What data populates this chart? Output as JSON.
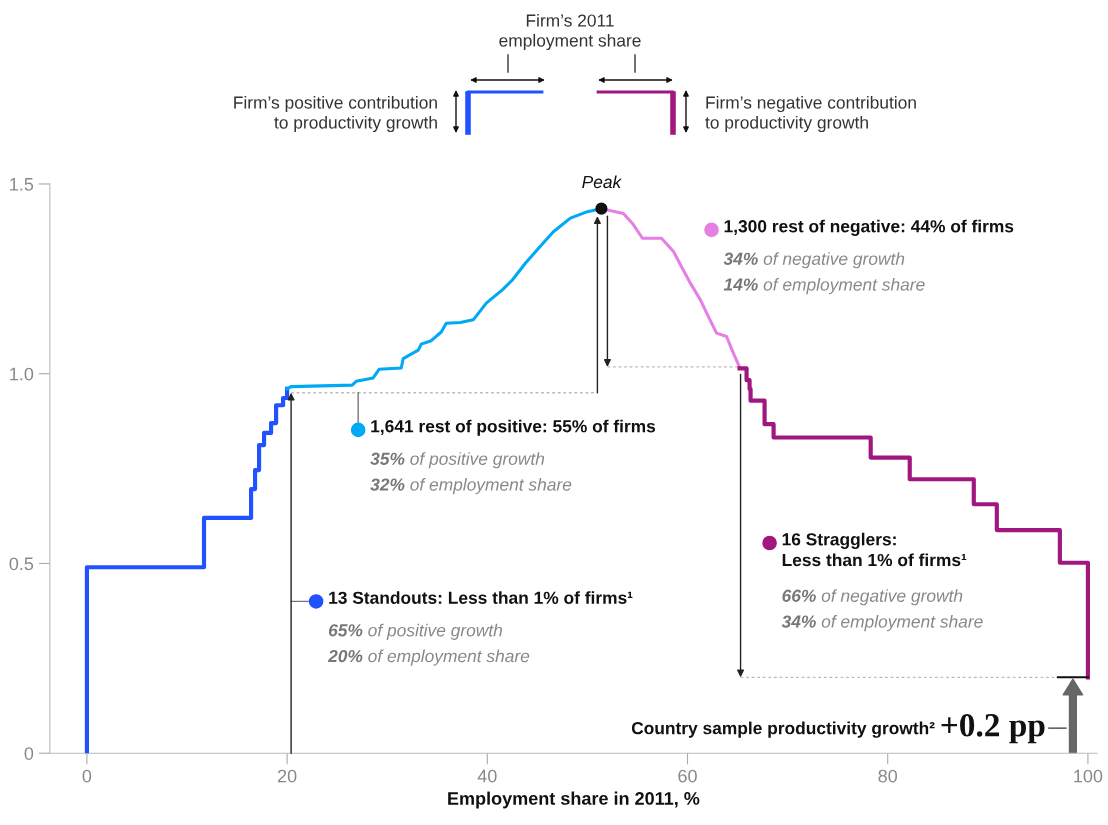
{
  "chart_data": {
    "type": "step",
    "xlabel": "Employment share in 2011, %",
    "series": [
      {
        "name": "13 Standouts: Less than 1% of firms¹",
        "color": "#2251ff",
        "x": [
          0,
          0,
          11.7,
          16.4,
          16.8,
          17.2,
          17.7,
          18.4,
          18.9,
          19.6,
          20.0
        ],
        "values": [
          0,
          0.49,
          0.62,
          0.696,
          0.746,
          0.812,
          0.844,
          0.87,
          0.917,
          0.936,
          0.96
        ]
      },
      {
        "name": "1,641 rest of positive: 55% of firms",
        "type": "line",
        "color": "#00a9f4",
        "x": [
          20.0,
          20.4,
          26.5,
          26.9,
          28.6,
          29.2,
          31.4,
          31.6,
          33.1,
          33.4,
          34.4,
          35.4,
          35.9,
          37.3,
          38.6,
          39.9,
          41.5,
          42.5,
          43.8,
          45.1,
          46.6,
          48.3,
          50.0,
          51.4
        ],
        "values": [
          0.96,
          0.966,
          0.97,
          0.98,
          0.989,
          1.012,
          1.015,
          1.04,
          1.062,
          1.078,
          1.087,
          1.11,
          1.133,
          1.135,
          1.142,
          1.186,
          1.221,
          1.247,
          1.291,
          1.33,
          1.374,
          1.41,
          1.427,
          1.435
        ]
      },
      {
        "name": "1,300 rest of negative: 44% of firms",
        "type": "line",
        "color": "#e67fe3",
        "x": [
          51.4,
          53.6,
          54.5,
          55.5,
          57.4,
          58.6,
          59.4,
          60.3,
          61.3,
          62.1,
          62.9,
          63.9,
          64.6,
          65.2
        ],
        "values": [
          1.435,
          1.422,
          1.396,
          1.357,
          1.357,
          1.322,
          1.282,
          1.238,
          1.194,
          1.15,
          1.107,
          1.098,
          1.053,
          1.018
        ]
      },
      {
        "name": "16 Stragglers:\nLess than 1% of firms¹",
        "color": "#a0177f",
        "x": [
          65.2,
          65.9,
          66.2,
          66.3,
          67.7,
          68.6,
          78.3,
          82.2,
          88.6,
          90.9,
          97.2,
          100
        ],
        "values": [
          1.014,
          0.983,
          0.96,
          0.929,
          0.867,
          0.832,
          0.779,
          0.722,
          0.656,
          0.588,
          0.502,
          0.2
        ]
      }
    ],
    "xlim": [
      -3.7,
      100.9
    ],
    "ylim": [
      0,
      1.5
    ],
    "xticks": [
      0,
      20,
      40,
      60,
      80,
      100
    ],
    "yticks": [
      0,
      0.5,
      {
        "value": 1.0,
        "label": "1.0"
      },
      1.5
    ],
    "grid": false,
    "legend": "right",
    "ref_lines": [
      {
        "axis": "y",
        "value": 0.2,
        "label": "+0.2 pp"
      }
    ],
    "annotations": [
      "Firm’s 2011\nemployment share",
      "Firm’s positive contribution\nto productivity growth",
      "Firm’s negative contribution\nto productivity growth",
      "65% of positive growth",
      "20% of employment share",
      "35% of positive growth",
      "32% of employment share",
      "34% of negative growth",
      "14% of employment share",
      "66% of negative growth",
      "34% of employment share",
      "Country sample productivity growth²",
      {
        "text": "Peak",
        "x": 51.4,
        "y": 1.435
      }
    ]
  }
}
